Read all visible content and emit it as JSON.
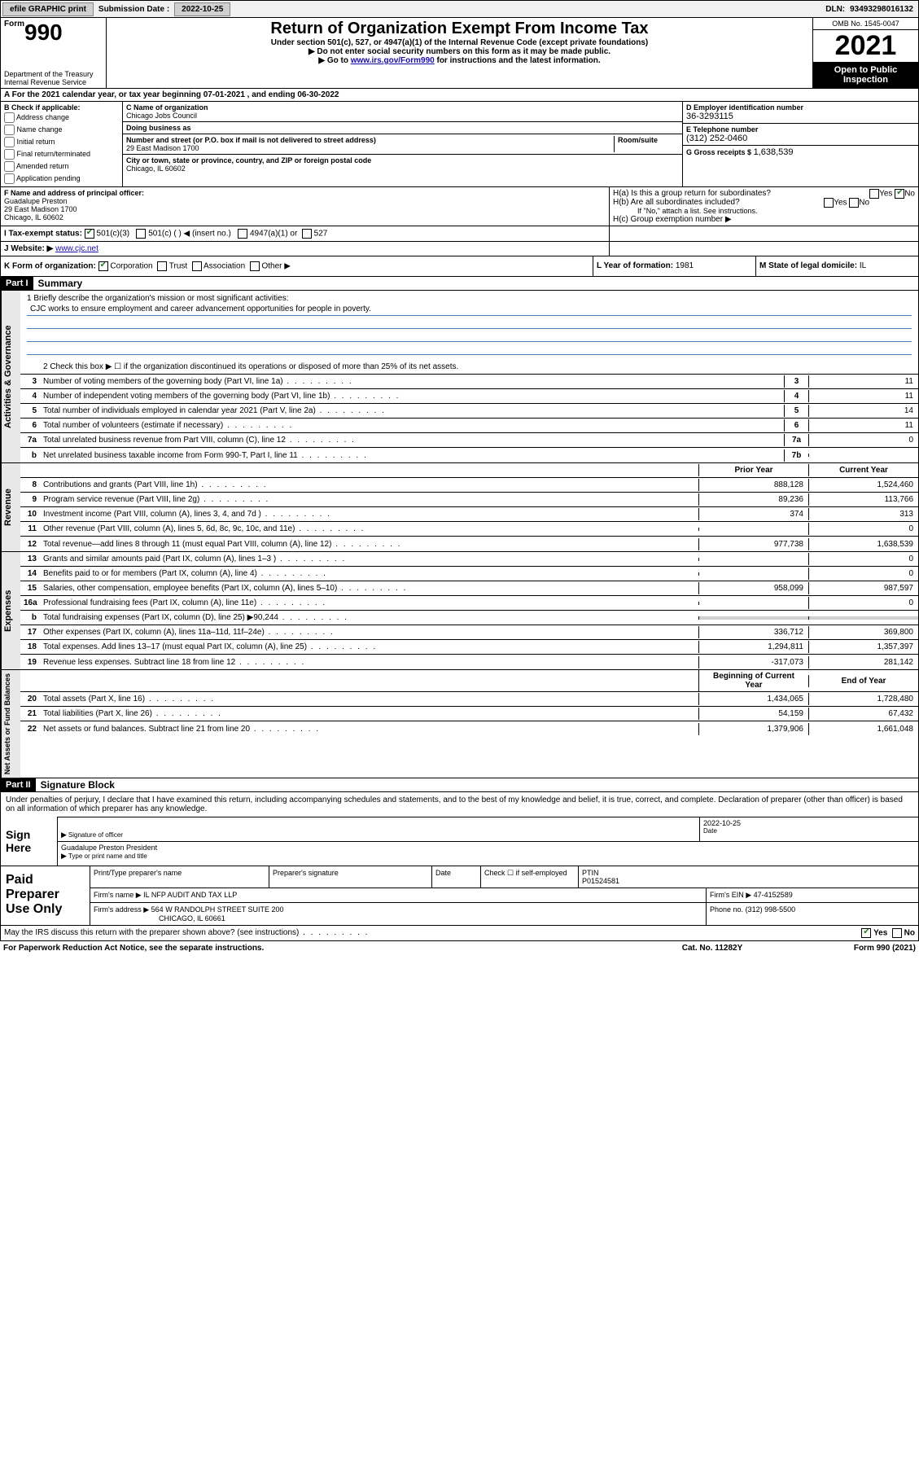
{
  "topbar": {
    "efile_label": "efile GRAPHIC print",
    "submission_label": "Submission Date :",
    "submission_date": "2022-10-25",
    "dln_label": "DLN:",
    "dln": "93493298016132"
  },
  "header": {
    "form_small": "Form",
    "form_num": "990",
    "title": "Return of Organization Exempt From Income Tax",
    "subtitle": "Under section 501(c), 527, or 4947(a)(1) of the Internal Revenue Code (except private foundations)",
    "note1": "▶ Do not enter social security numbers on this form as it may be made public.",
    "note2_pre": "▶ Go to ",
    "note2_link": "www.irs.gov/Form990",
    "note2_post": " for instructions and the latest information.",
    "dept": "Department of the Treasury",
    "irs": "Internal Revenue Service",
    "omb": "OMB No. 1545-0047",
    "year": "2021",
    "otpi": "Open to Public Inspection"
  },
  "section_a": {
    "text_pre": "A For the 2021 calendar year, or tax year beginning ",
    "begin": "07-01-2021",
    "mid": " , and ending ",
    "end": "06-30-2022"
  },
  "section_b": {
    "label": "B Check if applicable:",
    "items": [
      "Address change",
      "Name change",
      "Initial return",
      "Final return/terminated",
      "Amended return",
      "Application pending"
    ]
  },
  "section_c": {
    "name_label": "C Name of organization",
    "name": "Chicago Jobs Council",
    "dba_label": "Doing business as",
    "dba": "",
    "addr_label": "Number and street (or P.O. box if mail is not delivered to street address)",
    "room_label": "Room/suite",
    "addr": "29 East Madison 1700",
    "city_label": "City or town, state or province, country, and ZIP or foreign postal code",
    "city": "Chicago, IL  60602"
  },
  "section_d": {
    "label": "D Employer identification number",
    "val": "36-3293115"
  },
  "section_e": {
    "label": "E Telephone number",
    "val": "(312) 252-0460"
  },
  "section_g": {
    "label": "G Gross receipts $",
    "val": "1,638,539"
  },
  "section_f": {
    "label": "F Name and address of principal officer:",
    "name": "Guadalupe Preston",
    "addr": "29 East Madison 1700",
    "city": "Chicago, IL  60602"
  },
  "section_h": {
    "ha": "H(a)  Is this a group return for subordinates?",
    "hb": "H(b)  Are all subordinates included?",
    "hb_note": "If \"No,\" attach a list. See instructions.",
    "hc": "H(c)  Group exemption number ▶",
    "yes": "Yes",
    "no": "No"
  },
  "tax_status": {
    "label_i": "I   Tax-exempt status:",
    "opt1": "501(c)(3)",
    "opt2": "501(c) (   ) ◀ (insert no.)",
    "opt3": "4947(a)(1) or",
    "opt4": "527",
    "label_j": "J   Website: ▶",
    "website": "www.cjc.net"
  },
  "section_k": {
    "label": "K Form of organization:",
    "opts": [
      "Corporation",
      "Trust",
      "Association",
      "Other ▶"
    ],
    "l_label": "L Year of formation:",
    "l_val": "1981",
    "m_label": "M State of legal domicile:",
    "m_val": "IL"
  },
  "part1": {
    "hdr": "Part I",
    "title": "Summary",
    "line1_label": "1   Briefly describe the organization's mission or most significant activities:",
    "mission": "CJC works to ensure employment and career advancement opportunities for people in poverty.",
    "line2": "2   Check this box ▶ ☐  if the organization discontinued its operations or disposed of more than 25% of its net assets.",
    "governance": {
      "tab": "Activities & Governance",
      "rows": [
        {
          "n": "3",
          "t": "Number of voting members of the governing body (Part VI, line 1a)",
          "b": "3",
          "v": "11"
        },
        {
          "n": "4",
          "t": "Number of independent voting members of the governing body (Part VI, line 1b)",
          "b": "4",
          "v": "11"
        },
        {
          "n": "5",
          "t": "Total number of individuals employed in calendar year 2021 (Part V, line 2a)",
          "b": "5",
          "v": "14"
        },
        {
          "n": "6",
          "t": "Total number of volunteers (estimate if necessary)",
          "b": "6",
          "v": "11"
        },
        {
          "n": "7a",
          "t": "Total unrelated business revenue from Part VIII, column (C), line 12",
          "b": "7a",
          "v": "0"
        },
        {
          "n": "b",
          "t": "Net unrelated business taxable income from Form 990-T, Part I, line 11",
          "b": "7b",
          "v": ""
        }
      ]
    },
    "pyhdr": "Prior Year",
    "cyhdr": "Current Year",
    "revenue": {
      "tab": "Revenue",
      "rows": [
        {
          "n": "8",
          "t": "Contributions and grants (Part VIII, line 1h)",
          "py": "888,128",
          "cy": "1,524,460"
        },
        {
          "n": "9",
          "t": "Program service revenue (Part VIII, line 2g)",
          "py": "89,236",
          "cy": "113,766"
        },
        {
          "n": "10",
          "t": "Investment income (Part VIII, column (A), lines 3, 4, and 7d )",
          "py": "374",
          "cy": "313"
        },
        {
          "n": "11",
          "t": "Other revenue (Part VIII, column (A), lines 5, 6d, 8c, 9c, 10c, and 11e)",
          "py": "",
          "cy": "0"
        },
        {
          "n": "12",
          "t": "Total revenue—add lines 8 through 11 (must equal Part VIII, column (A), line 12)",
          "py": "977,738",
          "cy": "1,638,539"
        }
      ]
    },
    "expenses": {
      "tab": "Expenses",
      "rows": [
        {
          "n": "13",
          "t": "Grants and similar amounts paid (Part IX, column (A), lines 1–3 )",
          "py": "",
          "cy": "0"
        },
        {
          "n": "14",
          "t": "Benefits paid to or for members (Part IX, column (A), line 4)",
          "py": "",
          "cy": "0"
        },
        {
          "n": "15",
          "t": "Salaries, other compensation, employee benefits (Part IX, column (A), lines 5–10)",
          "py": "958,099",
          "cy": "987,597"
        },
        {
          "n": "16a",
          "t": "Professional fundraising fees (Part IX, column (A), line 11e)",
          "py": "",
          "cy": "0"
        },
        {
          "n": "b",
          "t": "Total fundraising expenses (Part IX, column (D), line 25) ▶90,244",
          "py": "grey",
          "cy": "grey"
        },
        {
          "n": "17",
          "t": "Other expenses (Part IX, column (A), lines 11a–11d, 11f–24e)",
          "py": "336,712",
          "cy": "369,800"
        },
        {
          "n": "18",
          "t": "Total expenses. Add lines 13–17 (must equal Part IX, column (A), line 25)",
          "py": "1,294,811",
          "cy": "1,357,397"
        },
        {
          "n": "19",
          "t": "Revenue less expenses. Subtract line 18 from line 12",
          "py": "-317,073",
          "cy": "281,142"
        }
      ]
    },
    "bcyhdr": "Beginning of Current Year",
    "eoyhdr": "End of Year",
    "netassets": {
      "tab": "Net Assets or Fund Balances",
      "rows": [
        {
          "n": "20",
          "t": "Total assets (Part X, line 16)",
          "py": "1,434,065",
          "cy": "1,728,480"
        },
        {
          "n": "21",
          "t": "Total liabilities (Part X, line 26)",
          "py": "54,159",
          "cy": "67,432"
        },
        {
          "n": "22",
          "t": "Net assets or fund balances. Subtract line 21 from line 20",
          "py": "1,379,906",
          "cy": "1,661,048"
        }
      ]
    }
  },
  "part2": {
    "hdr": "Part II",
    "title": "Signature Block",
    "declare": "Under penalties of perjury, I declare that I have examined this return, including accompanying schedules and statements, and to the best of my knowledge and belief, it is true, correct, and complete. Declaration of preparer (other than officer) is based on all information of which preparer has any knowledge.",
    "sign_here": "Sign Here",
    "sig_officer": "Signature of officer",
    "date_lbl": "Date",
    "date_val": "2022-10-25",
    "name_title": "Guadalupe Preston  President",
    "name_caption": "Type or print name and title"
  },
  "preparer": {
    "label": "Paid Preparer Use Only",
    "r1": {
      "c1": "Print/Type preparer's name",
      "c2": "Preparer's signature",
      "c3": "Date",
      "c4": "Check ☐ if self-employed",
      "c5l": "PTIN",
      "c5v": "P01524581"
    },
    "r2": {
      "c1": "Firm's name     ▶",
      "c1v": "IL NFP AUDIT AND TAX LLP",
      "c2": "Firm's EIN ▶",
      "c2v": "47-4152589"
    },
    "r3": {
      "c1": "Firm's address ▶",
      "c1v": "564 W RANDOLPH STREET SUITE 200",
      "c1v2": "CHICAGO, IL  60661",
      "c2": "Phone no.",
      "c2v": "(312) 998-5500"
    }
  },
  "discuss": {
    "text": "May the IRS discuss this return with the preparer shown above? (see instructions)",
    "yes": "Yes",
    "no": "No"
  },
  "footer": {
    "left": "For Paperwork Reduction Act Notice, see the separate instructions.",
    "mid": "Cat. No. 11282Y",
    "right": "Form 990 (2021)"
  },
  "colors": {
    "link": "#1a0dab",
    "check_green": "#2b7a2b",
    "rule_blue": "#4a7db5",
    "grey_fill": "#d0d0d0"
  }
}
